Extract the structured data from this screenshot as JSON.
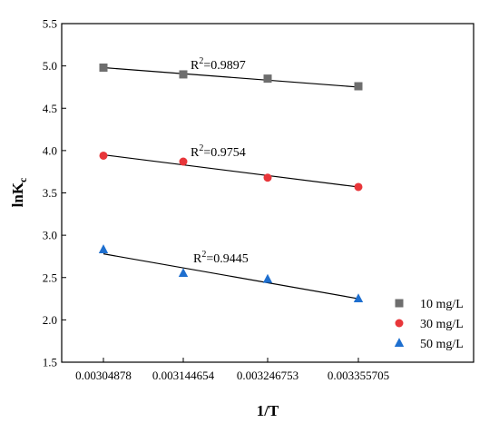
{
  "chart_data": {
    "type": "scatter",
    "xlabel": "1/T",
    "ylabel_main": "lnK",
    "ylabel_sub": "c",
    "x_categories": [
      "0.003048780",
      "0.003144654",
      "0.003246753",
      "0.003355705"
    ],
    "x_tick_labels": [
      "0.00304878",
      "0.003144654",
      "0.003246753",
      "0.003355705"
    ],
    "ylim": [
      1.5,
      5.5
    ],
    "y_ticks": [
      "1.5",
      "2.0",
      "2.5",
      "3.0",
      "3.5",
      "4.0",
      "4.5",
      "5.0",
      "5.5"
    ],
    "legend_position": "bottom-right",
    "series": [
      {
        "name": "10 mg/L",
        "marker": "square",
        "color": "#6e6e6e",
        "values": [
          4.98,
          4.9,
          4.85,
          4.76
        ],
        "fit": [
          4.98,
          4.75
        ],
        "r2_base": "R",
        "r2_sup": "2",
        "r2_value": "=0.9897"
      },
      {
        "name": "30 mg/L",
        "marker": "circle",
        "color": "#e8363a",
        "values": [
          3.94,
          3.87,
          3.68,
          3.57
        ],
        "fit": [
          3.95,
          3.57
        ],
        "r2_base": "R",
        "r2_sup": "2",
        "r2_value": "=0.9754"
      },
      {
        "name": "50 mg/L",
        "marker": "triangle",
        "color": "#1e6fcf",
        "values": [
          2.83,
          2.55,
          2.48,
          2.25
        ],
        "fit": [
          2.78,
          2.25
        ],
        "r2_base": "R",
        "r2_sup": "2",
        "r2_value": "=0.9445"
      }
    ]
  }
}
